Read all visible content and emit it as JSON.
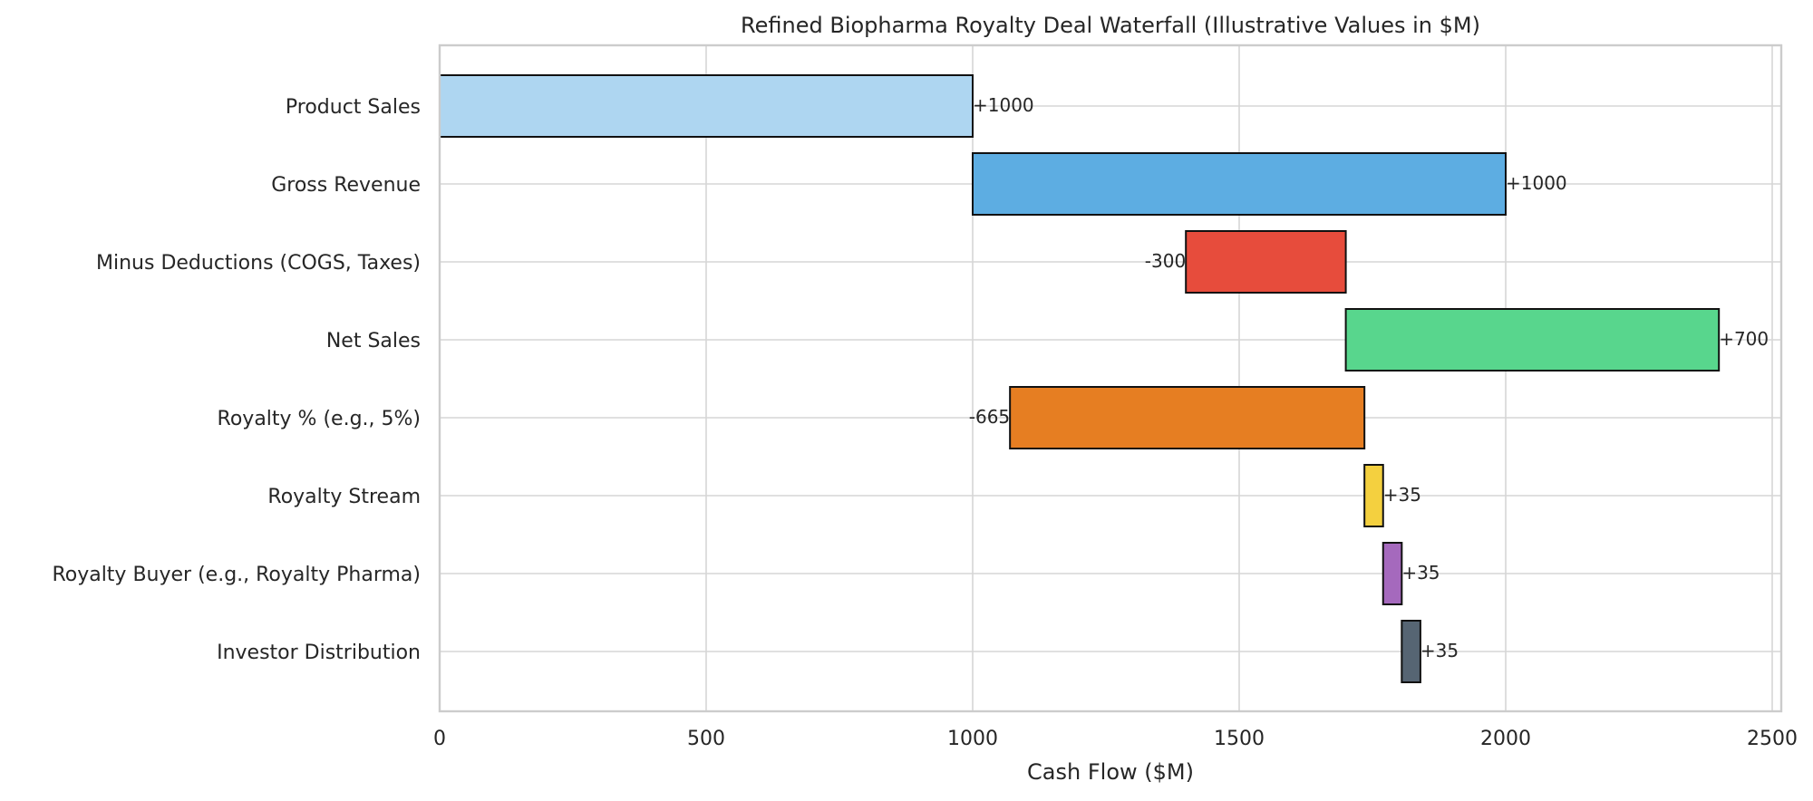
{
  "chart_data": {
    "type": "bar",
    "subtype": "horizontal-waterfall",
    "title": "Refined Biopharma Royalty Deal Waterfall (Illustrative Values in $M)",
    "xlabel": "Cash Flow ($M)",
    "ylabel": "",
    "xlim": [
      0,
      2500
    ],
    "xticks": [
      0,
      500,
      1000,
      1500,
      2000,
      2500
    ],
    "grid": true,
    "legend": "none",
    "categories": [
      "Product Sales",
      "Gross Revenue",
      "Minus Deductions (COGS, Taxes)",
      "Net Sales",
      "Royalty % (e.g., 5%)",
      "Royalty Stream",
      "Royalty Buyer (e.g., Royalty Pharma)",
      "Investor Distribution"
    ],
    "bars": [
      {
        "start": 0,
        "end": 1000,
        "delta": 1000,
        "label": "+1000",
        "color": "#aed6f1"
      },
      {
        "start": 1000,
        "end": 2000,
        "delta": 1000,
        "label": "+1000",
        "color": "#5dade2"
      },
      {
        "start": 1400,
        "end": 1700,
        "delta": -300,
        "label": "-300",
        "color": "#e74c3c"
      },
      {
        "start": 1700,
        "end": 2400,
        "delta": 700,
        "label": "+700",
        "color": "#58d68d"
      },
      {
        "start": 1070,
        "end": 1735,
        "delta": -665,
        "label": "-665",
        "color": "#e67e22"
      },
      {
        "start": 1735,
        "end": 1770,
        "delta": 35,
        "label": "+35",
        "color": "#f4d03f"
      },
      {
        "start": 1770,
        "end": 1805,
        "delta": 35,
        "label": "+35",
        "color": "#a569bd"
      },
      {
        "start": 1805,
        "end": 1840,
        "delta": 35,
        "label": "+35",
        "color": "#566573"
      }
    ]
  }
}
